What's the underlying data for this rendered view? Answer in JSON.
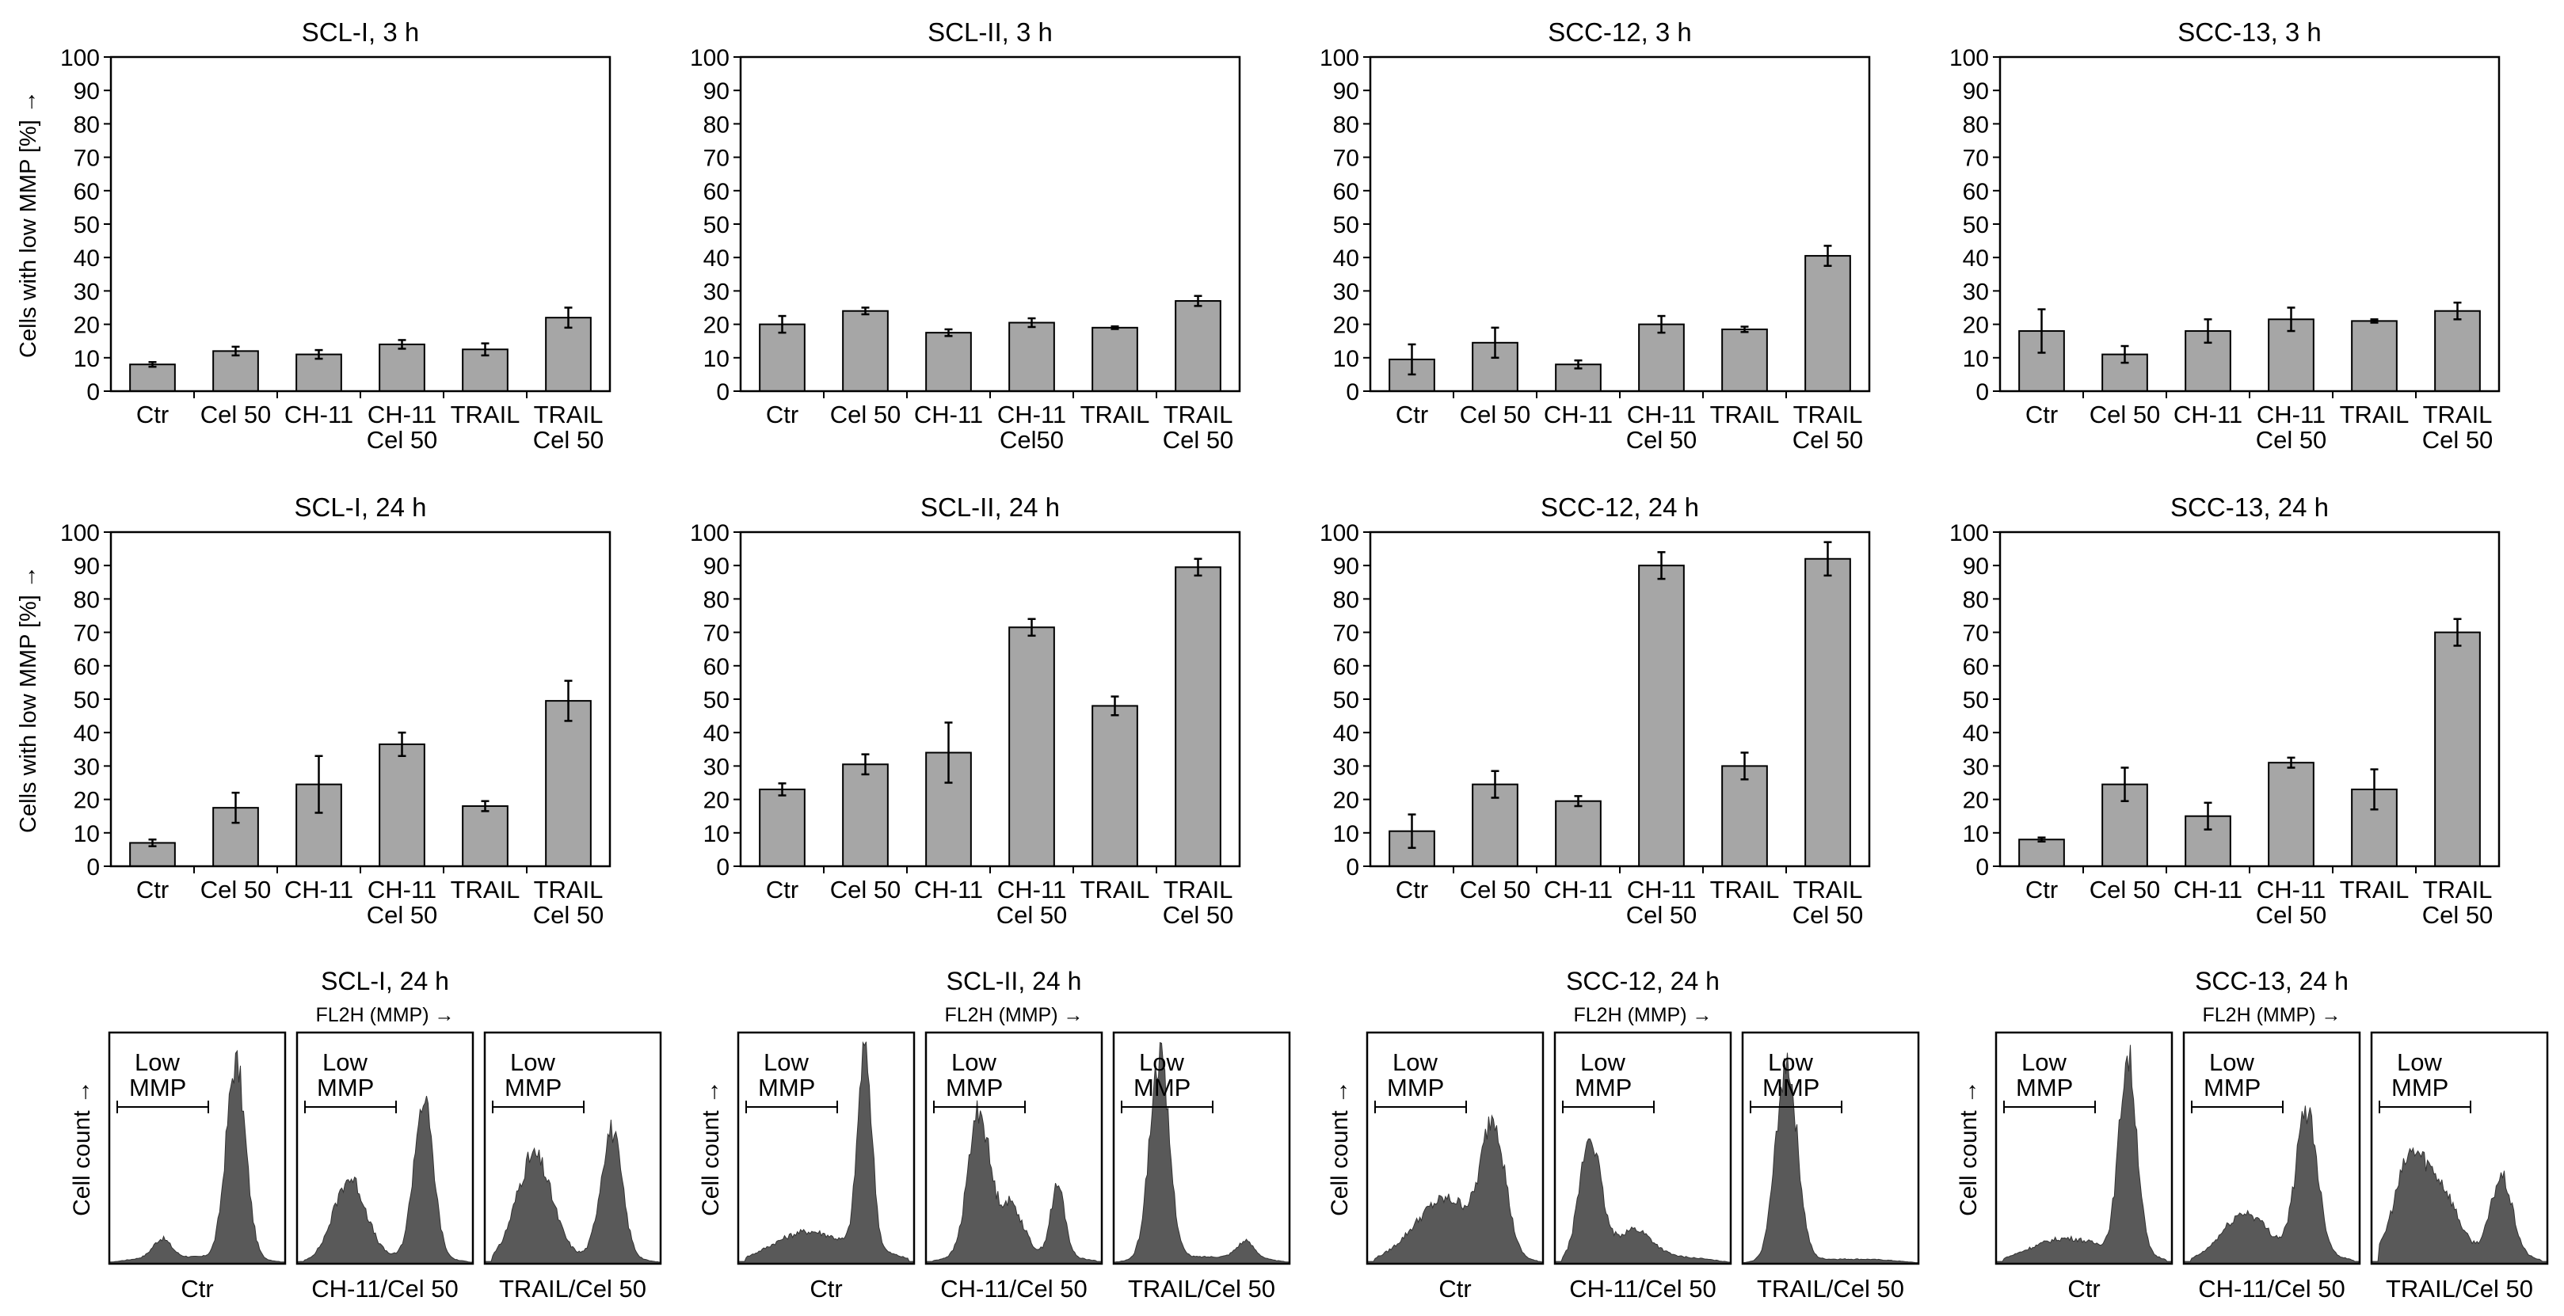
{
  "chart_data": {
    "type": "bar",
    "figure_description": "Cells with low mitochondrial membrane potential (MMP) after treatment, bar charts for 3 h and 24 h, plus flow cytometry histograms at 24 h",
    "y_axis": {
      "label": "Cells with low MMP [%]",
      "arrow": "→",
      "ylim": [
        0,
        100
      ],
      "ticks": [
        0,
        10,
        20,
        30,
        40,
        50,
        60,
        70,
        80,
        90,
        100
      ]
    },
    "bar_color": "#a6a6a6",
    "hist_color": "#595959",
    "charts": [
      {
        "title": "SCL-I, 3 h",
        "categories": [
          [
            "Ctr"
          ],
          [
            "Cel 50"
          ],
          [
            "CH-11"
          ],
          [
            "CH-11",
            "Cel 50"
          ],
          [
            "TRAIL"
          ],
          [
            "TRAIL",
            "Cel 50"
          ]
        ],
        "values": [
          8,
          12,
          11,
          14,
          12.5,
          22
        ],
        "errors": [
          0.7,
          1.3,
          1.3,
          1.3,
          1.8,
          3
        ]
      },
      {
        "title": "SCL-II, 3 h",
        "categories": [
          [
            "Ctr"
          ],
          [
            "Cel 50"
          ],
          [
            "CH-11"
          ],
          [
            "CH-11",
            "Cel50"
          ],
          [
            "TRAIL"
          ],
          [
            "TRAIL",
            "Cel 50"
          ]
        ],
        "values": [
          20,
          24,
          17.5,
          20.5,
          19,
          27
        ],
        "errors": [
          2.5,
          1,
          1,
          1.3,
          0.4,
          1.5
        ]
      },
      {
        "title": "SCC-12, 3 h",
        "categories": [
          [
            "Ctr"
          ],
          [
            "Cel 50"
          ],
          [
            "CH-11"
          ],
          [
            "CH-11",
            "Cel 50"
          ],
          [
            "TRAIL"
          ],
          [
            "TRAIL",
            "Cel 50"
          ]
        ],
        "values": [
          9.5,
          14.5,
          8,
          20,
          18.5,
          40.5
        ],
        "errors": [
          4.5,
          4.5,
          1.2,
          2.5,
          0.8,
          3
        ]
      },
      {
        "title": "SCC-13, 3 h",
        "categories": [
          [
            "Ctr"
          ],
          [
            "Cel 50"
          ],
          [
            "CH-11"
          ],
          [
            "CH-11",
            "Cel 50"
          ],
          [
            "TRAIL"
          ],
          [
            "TRAIL",
            "Cel 50"
          ]
        ],
        "values": [
          18,
          11,
          18,
          21.5,
          21,
          24
        ],
        "errors": [
          6.5,
          2.5,
          3.5,
          3.5,
          0.5,
          2.5
        ]
      },
      {
        "title": "SCL-I, 24 h",
        "categories": [
          [
            "Ctr"
          ],
          [
            "Cel 50"
          ],
          [
            "CH-11"
          ],
          [
            "CH-11",
            "Cel 50"
          ],
          [
            "TRAIL"
          ],
          [
            "TRAIL",
            "Cel 50"
          ]
        ],
        "values": [
          7,
          17.5,
          24.5,
          36.5,
          18,
          49.5
        ],
        "errors": [
          1,
          4.5,
          8.5,
          3.5,
          1.5,
          6
        ]
      },
      {
        "title": "SCL-II, 24 h",
        "categories": [
          [
            "Ctr"
          ],
          [
            "Cel 50"
          ],
          [
            "CH-11"
          ],
          [
            "CH-11",
            "Cel 50"
          ],
          [
            "TRAIL"
          ],
          [
            "TRAIL",
            "Cel 50"
          ]
        ],
        "values": [
          23,
          30.5,
          34,
          71.5,
          48,
          89.5
        ],
        "errors": [
          1.8,
          3,
          9,
          2.5,
          2.8,
          2.5
        ]
      },
      {
        "title": "SCC-12, 24 h",
        "categories": [
          [
            "Ctr"
          ],
          [
            "Cel 50"
          ],
          [
            "CH-11"
          ],
          [
            "CH-11",
            "Cel 50"
          ],
          [
            "TRAIL"
          ],
          [
            "TRAIL",
            "Cel 50"
          ]
        ],
        "values": [
          10.5,
          24.5,
          19.5,
          90,
          30,
          92
        ],
        "errors": [
          5,
          4,
          1.5,
          4,
          4,
          5
        ]
      },
      {
        "title": "SCC-13, 24 h",
        "categories": [
          [
            "Ctr"
          ],
          [
            "Cel 50"
          ],
          [
            "CH-11"
          ],
          [
            "CH-11",
            "Cel 50"
          ],
          [
            "TRAIL"
          ],
          [
            "TRAIL",
            "Cel 50"
          ]
        ],
        "values": [
          8,
          24.5,
          15,
          31,
          23,
          70
        ],
        "errors": [
          0.6,
          5,
          4,
          1.5,
          6,
          4
        ]
      }
    ],
    "histograms": [
      {
        "title": "SCL-I, 24 h",
        "x_axis_label": "FL2H (MMP) →",
        "y_axis_label": "Cell count →",
        "gate_label": [
          "Low",
          "MMP"
        ],
        "panels": [
          "Ctr",
          "CH-11/Cel 50",
          "TRAIL/Cel 50"
        ]
      },
      {
        "title": "SCL-II, 24 h",
        "x_axis_label": "FL2H (MMP) →",
        "y_axis_label": "Cell count →",
        "gate_label": [
          "Low",
          "MMP"
        ],
        "panels": [
          "Ctr",
          "CH-11/Cel 50",
          "TRAIL/Cel 50"
        ]
      },
      {
        "title": "SCC-12, 24 h",
        "x_axis_label": "FL2H (MMP) →",
        "y_axis_label": "Cell count →",
        "gate_label": [
          "Low",
          "MMP"
        ],
        "panels": [
          "Ctr",
          "CH-11/Cel 50",
          "TRAIL/Cel 50"
        ]
      },
      {
        "title": "SCC-13, 24 h",
        "x_axis_label": "FL2H (MMP) →",
        "y_axis_label": "Cell count →",
        "gate_label": [
          "Low",
          "MMP"
        ],
        "panels": [
          "Ctr",
          "CH-11/Cel 50",
          "TRAIL/Cel 50"
        ]
      }
    ]
  }
}
